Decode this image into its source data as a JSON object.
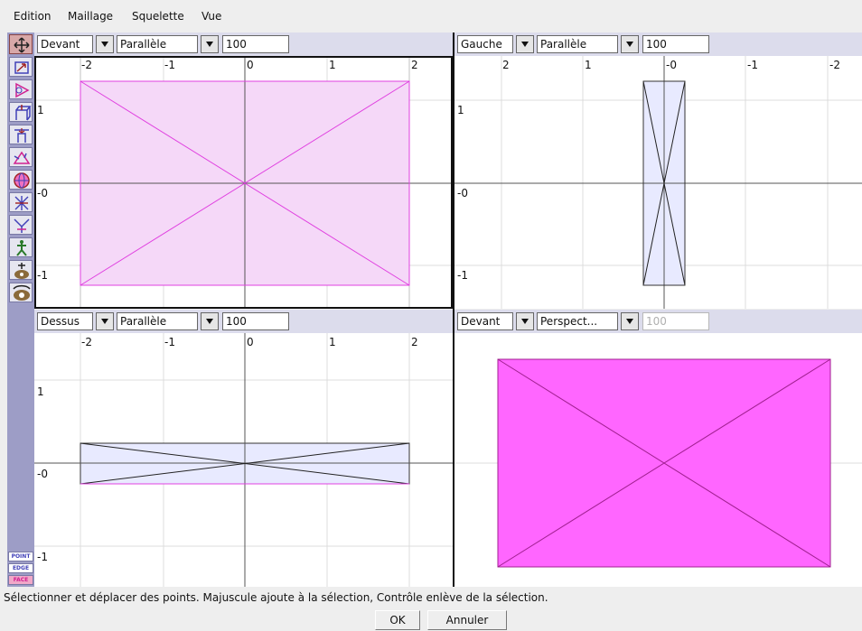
{
  "menu": [
    "Edition",
    "Maillage",
    "Squelette",
    "Vue"
  ],
  "toolbar": {
    "tools": [
      "move-points-icon",
      "scale-icon",
      "rotate-icon",
      "extrude-icon",
      "bevel-icon",
      "move-vertex-icon",
      "sphere-icon",
      "skew-icon",
      "taper-icon",
      "skeleton-icon",
      "camera-move-icon",
      "camera-rotate-icon"
    ],
    "modes": [
      "POINT",
      "EDGE",
      "FACE"
    ]
  },
  "viewports": [
    {
      "view": "Devant",
      "projection": "Parallèle",
      "zoom": "100",
      "x_ticks": [
        "-2",
        "-1",
        "0",
        "1",
        "2"
      ],
      "y_ticks": [
        "1",
        "-0",
        "-1"
      ]
    },
    {
      "view": "Gauche",
      "projection": "Parallèle",
      "zoom": "100",
      "x_ticks": [
        "2",
        "1",
        "-0",
        "-1",
        "-2"
      ],
      "y_ticks": [
        "1",
        "-0",
        "-1"
      ]
    },
    {
      "view": "Dessus",
      "projection": "Parallèle",
      "zoom": "100",
      "x_ticks": [
        "-2",
        "-1",
        "0",
        "1",
        "2"
      ],
      "y_ticks": [
        "1",
        "-0",
        "-1"
      ]
    },
    {
      "view": "Devant",
      "projection": "Perspect...",
      "zoom": "100"
    }
  ],
  "status": "Sélectionner et déplacer des points.  Majuscule ajoute à la sélection, Contrôle enlève de la sélection.",
  "buttons": {
    "ok": "OK",
    "cancel": "Annuler"
  },
  "colors": {
    "selected_face": "#ff66ff",
    "selected_face_light": "#f5d8f8",
    "unselected_face": "#e8eaff",
    "toolbar": "#9d9dc6"
  }
}
